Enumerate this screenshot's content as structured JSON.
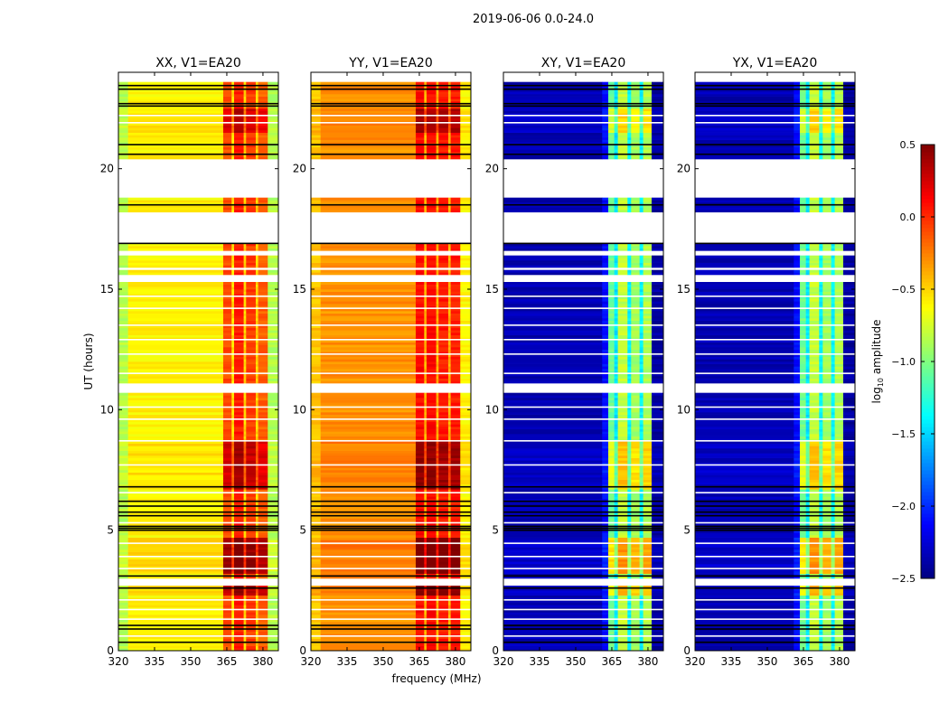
{
  "chart_data": {
    "type": "heatmap",
    "title": "2019-06-06 0.0-24.0",
    "xlabel": "frequency (MHz)",
    "ylabel": "UT (hours)",
    "xlim": [
      320,
      386.4
    ],
    "ylim": [
      0,
      24
    ],
    "xticks": [
      320,
      335,
      350,
      365,
      380
    ],
    "yticks": [
      0,
      5,
      10,
      15,
      20
    ],
    "colorbar": {
      "label_prefix": "log",
      "label_sub": "10",
      "label_suffix": " amplitude",
      "range": [
        -2.5,
        0.5
      ],
      "ticks": [
        "0.5",
        "0.0",
        "−0.5",
        "−1.0",
        "−1.5",
        "−2.0",
        "−2.5"
      ],
      "tick_values": [
        0.5,
        0.0,
        -0.5,
        -1.0,
        -1.5,
        -2.0,
        -2.5
      ],
      "colormap": "jet"
    },
    "time_segments_with_data": [
      [
        0,
        2.7
      ],
      [
        3.0,
        10.7
      ],
      [
        11.1,
        15.3
      ],
      [
        15.6,
        15.8
      ],
      [
        15.9,
        16.4
      ],
      [
        16.6,
        16.9
      ],
      [
        18.2,
        18.8
      ],
      [
        20.4,
        23.6
      ]
    ],
    "flagged_black_lines_hours": [
      0.35,
      0.9,
      1.05,
      2.6,
      3.1,
      5.0,
      5.08,
      5.16,
      5.6,
      5.75,
      6.0,
      6.2,
      6.8,
      16.9,
      18.5,
      20.6,
      21.0,
      22.6,
      22.7,
      23.3,
      23.45
    ],
    "white_lines_hours": [
      0.6,
      1.3,
      1.7,
      2.1,
      3.4,
      3.9,
      4.45,
      5.3,
      6.55,
      7.7,
      8.7,
      9.6,
      10.1,
      11.5,
      12.3,
      12.9,
      13.5,
      14.2,
      14.7,
      17.5,
      21.9,
      22.2
    ],
    "bright_periods": [
      {
        "hours": [
          2.3,
          2.7
        ],
        "boost": 0.4
      },
      {
        "hours": [
          3.2,
          4.6
        ],
        "boost": 0.5
      },
      {
        "hours": [
          6.6,
          8.6
        ],
        "boost": 0.35
      },
      {
        "hours": [
          21.5,
          22.5
        ],
        "boost": 0.3
      }
    ],
    "panels": [
      {
        "title": "XX, V1=EA20",
        "bands": [
          {
            "freq": [
              320,
              324
            ],
            "value": -0.85
          },
          {
            "freq": [
              324,
              363.5
            ],
            "value": -0.6
          },
          {
            "freq": [
              363.5,
              367
            ],
            "value": -0.1
          },
          {
            "freq": [
              367,
              368
            ],
            "value": -0.55
          },
          {
            "freq": [
              368,
              372
            ],
            "value": 0.05
          },
          {
            "freq": [
              372,
              373
            ],
            "value": -0.5
          },
          {
            "freq": [
              373,
              377
            ],
            "value": -0.05
          },
          {
            "freq": [
              377,
              378
            ],
            "value": -0.5
          },
          {
            "freq": [
              378,
              382
            ],
            "value": -0.15
          },
          {
            "freq": [
              382,
              386.4
            ],
            "value": -0.85
          }
        ]
      },
      {
        "title": "YY, V1=EA20",
        "bands": [
          {
            "freq": [
              320,
              324
            ],
            "value": -0.45
          },
          {
            "freq": [
              324,
              363.5
            ],
            "value": -0.3
          },
          {
            "freq": [
              363.5,
              367
            ],
            "value": 0.1
          },
          {
            "freq": [
              367,
              368
            ],
            "value": -0.4
          },
          {
            "freq": [
              368,
              372
            ],
            "value": 0.1
          },
          {
            "freq": [
              372,
              373
            ],
            "value": -0.4
          },
          {
            "freq": [
              373,
              377
            ],
            "value": 0.05
          },
          {
            "freq": [
              377,
              378
            ],
            "value": -0.4
          },
          {
            "freq": [
              378,
              382
            ],
            "value": 0.05
          },
          {
            "freq": [
              382,
              386.4
            ],
            "value": -0.6
          }
        ]
      },
      {
        "title": "XY, V1=EA20",
        "bands": [
          {
            "freq": [
              320,
              361
            ],
            "value": -2.35
          },
          {
            "freq": [
              361,
              363.5
            ],
            "value": -2.1
          },
          {
            "freq": [
              363.5,
              366
            ],
            "value": -1.05
          },
          {
            "freq": [
              366,
              367.5
            ],
            "value": -1.45
          },
          {
            "freq": [
              367.5,
              371.5
            ],
            "value": -0.8
          },
          {
            "freq": [
              371.5,
              373
            ],
            "value": -1.4
          },
          {
            "freq": [
              373,
              376.5
            ],
            "value": -0.9
          },
          {
            "freq": [
              376.5,
              378
            ],
            "value": -1.4
          },
          {
            "freq": [
              378,
              381.5
            ],
            "value": -0.85
          },
          {
            "freq": [
              381.5,
              386.4
            ],
            "value": -2.4
          }
        ]
      },
      {
        "title": "YX, V1=EA20",
        "bands": [
          {
            "freq": [
              320,
              361
            ],
            "value": -2.35
          },
          {
            "freq": [
              361,
              363.5
            ],
            "value": -2.1
          },
          {
            "freq": [
              363.5,
              366
            ],
            "value": -1.05
          },
          {
            "freq": [
              366,
              367.5
            ],
            "value": -1.45
          },
          {
            "freq": [
              367.5,
              371.5
            ],
            "value": -0.8
          },
          {
            "freq": [
              371.5,
              373
            ],
            "value": -1.4
          },
          {
            "freq": [
              373,
              376.5
            ],
            "value": -0.9
          },
          {
            "freq": [
              376.5,
              378
            ],
            "value": -1.4
          },
          {
            "freq": [
              378,
              381.5
            ],
            "value": -0.85
          },
          {
            "freq": [
              381.5,
              386.4
            ],
            "value": -2.4
          }
        ]
      }
    ]
  }
}
